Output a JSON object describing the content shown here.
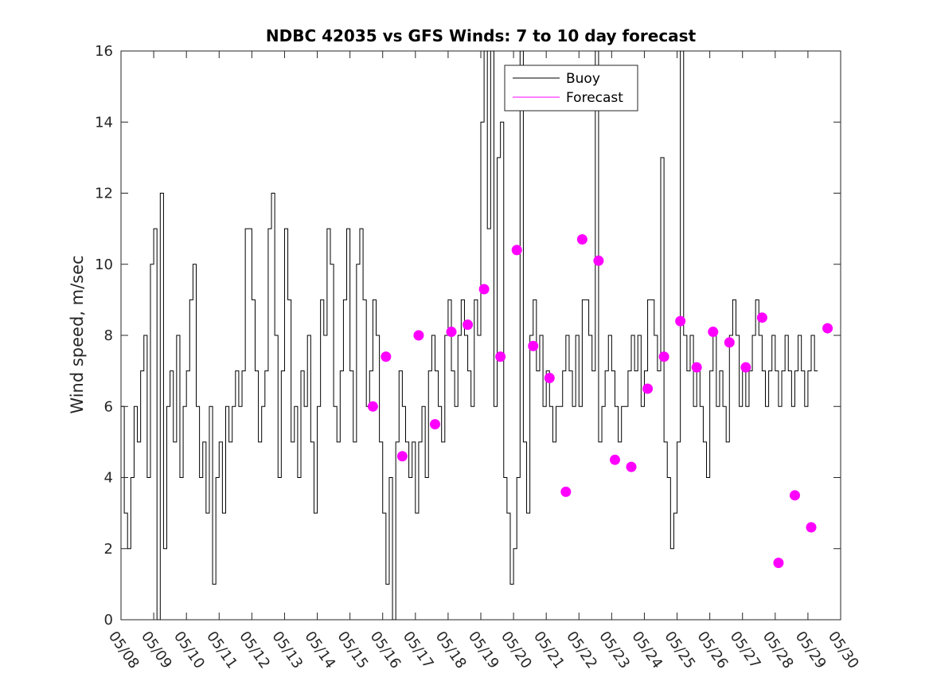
{
  "chart_data": {
    "type": "line",
    "title": "NDBC 42035 vs GFS Winds: 7 to 10 day forecast",
    "xlabel": "",
    "ylabel": "Wind speed, m/sec",
    "x_ticks": [
      "05/08",
      "05/09",
      "05/10",
      "05/11",
      "05/12",
      "05/13",
      "05/14",
      "05/15",
      "05/16",
      "05/17",
      "05/18",
      "05/19",
      "05/20",
      "05/21",
      "05/22",
      "05/23",
      "05/24",
      "05/25",
      "05/26",
      "05/27",
      "05/28",
      "05/29",
      "05/30"
    ],
    "xlim": [
      0,
      22
    ],
    "ylim": [
      0,
      16
    ],
    "y_ticks": [
      0,
      2,
      4,
      6,
      8,
      10,
      12,
      14,
      16
    ],
    "grid": false,
    "legend": {
      "position": "top-right-inside",
      "entries": [
        "Buoy",
        "Forecast"
      ]
    },
    "colors": {
      "buoy": "#000000",
      "forecast": "#ff00ff"
    },
    "series": [
      {
        "name": "Buoy",
        "x": [
          0.0,
          0.1,
          0.2,
          0.3,
          0.4,
          0.5,
          0.6,
          0.7,
          0.8,
          0.9,
          1.0,
          1.1,
          1.2,
          1.3,
          1.4,
          1.5,
          1.6,
          1.7,
          1.8,
          1.9,
          2.0,
          2.1,
          2.2,
          2.3,
          2.4,
          2.5,
          2.6,
          2.7,
          2.8,
          2.9,
          3.0,
          3.1,
          3.2,
          3.3,
          3.4,
          3.5,
          3.6,
          3.7,
          3.8,
          3.9,
          4.0,
          4.1,
          4.2,
          4.3,
          4.4,
          4.5,
          4.6,
          4.7,
          4.8,
          4.9,
          5.0,
          5.1,
          5.2,
          5.3,
          5.4,
          5.5,
          5.6,
          5.7,
          5.8,
          5.9,
          6.0,
          6.1,
          6.2,
          6.3,
          6.4,
          6.5,
          6.6,
          6.7,
          6.8,
          6.9,
          7.0,
          7.1,
          7.2,
          7.3,
          7.4,
          7.5,
          7.6,
          7.7,
          7.8,
          7.9,
          8.0,
          8.1,
          8.2,
          8.3,
          8.4,
          8.5,
          8.6,
          8.7,
          8.8,
          8.9,
          9.0,
          9.1,
          9.2,
          9.3,
          9.4,
          9.5,
          9.6,
          9.7,
          9.8,
          9.9,
          10.0,
          10.1,
          10.2,
          10.3,
          10.4,
          10.5,
          10.6,
          10.7,
          10.8,
          10.9,
          11.0,
          11.1,
          11.2,
          11.3,
          11.4,
          11.5,
          11.6,
          11.7,
          11.8,
          11.9,
          12.0,
          12.1,
          12.2,
          12.3,
          12.4,
          12.5,
          12.6,
          12.7,
          12.8,
          12.9,
          13.0,
          13.1,
          13.2,
          13.3,
          13.4,
          13.5,
          13.6,
          13.7,
          13.8,
          13.9,
          14.0,
          14.1,
          14.2,
          14.3,
          14.4,
          14.5,
          14.6,
          14.7,
          14.8,
          14.9,
          15.0,
          15.1,
          15.2,
          15.3,
          15.4,
          15.5,
          15.6,
          15.7,
          15.8,
          15.9,
          16.0,
          16.1,
          16.2,
          16.3,
          16.4,
          16.5,
          16.6,
          16.7,
          16.8,
          16.9,
          17.0,
          17.1,
          17.2,
          17.3,
          17.4,
          17.5,
          17.6,
          17.7,
          17.8,
          17.9,
          18.0,
          18.1,
          18.2,
          18.3,
          18.4,
          18.5,
          18.6,
          18.7,
          18.8,
          18.9,
          19.0,
          19.1,
          19.2,
          19.3,
          19.4,
          19.5,
          19.6,
          19.7,
          19.8,
          19.9,
          20.0,
          20.1,
          20.2,
          20.3,
          20.4,
          20.5,
          20.6,
          20.7,
          20.8,
          20.9,
          21.0,
          21.1,
          21.2
        ],
        "values": [
          6,
          3,
          2,
          4,
          6,
          5,
          7,
          8,
          4,
          10,
          11,
          0,
          12,
          2,
          6,
          7,
          5,
          8,
          4,
          6,
          7,
          9,
          10,
          6,
          4,
          5,
          3,
          6,
          1,
          4,
          5,
          3,
          6,
          5,
          6,
          7,
          6,
          7,
          11,
          11,
          9,
          7,
          5,
          6,
          7,
          11,
          12,
          8,
          4,
          7,
          11,
          9,
          5,
          6,
          4,
          7,
          6,
          8,
          5,
          3,
          6,
          9,
          8,
          11,
          10,
          6,
          5,
          7,
          9,
          11,
          7,
          5,
          10,
          11,
          9,
          6,
          7,
          9,
          8,
          5,
          3,
          1,
          4,
          0,
          5,
          7,
          6,
          5,
          4,
          5,
          3,
          5,
          6,
          4,
          7,
          8,
          7,
          6,
          5,
          8,
          9,
          7,
          6,
          8,
          9,
          8,
          7,
          6,
          9,
          8,
          14,
          16,
          11,
          16,
          6,
          13,
          14,
          4,
          3,
          1,
          2,
          4,
          16,
          5,
          3,
          8,
          9,
          7,
          8,
          6,
          7,
          6,
          5,
          6,
          6,
          7,
          8,
          7,
          6,
          8,
          6,
          9,
          9,
          8,
          7,
          16,
          5,
          6,
          7,
          8,
          7,
          6,
          5,
          6,
          6,
          7,
          8,
          7,
          8,
          6,
          7,
          9,
          9,
          8,
          7,
          13,
          5,
          4,
          2,
          3,
          5,
          16,
          8,
          7,
          8,
          6,
          7,
          6,
          5,
          4,
          7,
          8,
          6,
          7,
          6,
          5,
          8,
          9,
          8,
          6,
          7,
          6,
          7,
          8,
          9,
          8,
          7,
          6,
          7,
          8,
          7,
          6,
          7,
          8,
          7,
          6,
          7,
          8,
          7,
          6,
          7,
          8,
          7
        ]
      },
      {
        "name": "Forecast",
        "markers": {
          "x": [
            7.7,
            8.1,
            8.6,
            9.1,
            9.6,
            10.1,
            10.6,
            11.1,
            11.6,
            12.1,
            12.6,
            13.1,
            13.6,
            14.1,
            14.6,
            15.1,
            15.6,
            16.1,
            16.6,
            17.1,
            17.6,
            18.1,
            18.6,
            19.1,
            19.6,
            20.1,
            20.6,
            21.1,
            21.6
          ],
          "y": [
            6.0,
            7.4,
            4.6,
            8.0,
            5.5,
            8.1,
            8.3,
            9.3,
            7.4,
            10.4,
            7.7,
            6.8,
            3.6,
            10.7,
            10.1,
            4.5,
            4.3,
            6.5,
            7.4,
            8.4,
            7.1,
            8.1,
            7.8,
            7.1,
            8.5,
            1.6,
            3.5,
            2.6,
            8.2
          ]
        }
      }
    ]
  }
}
